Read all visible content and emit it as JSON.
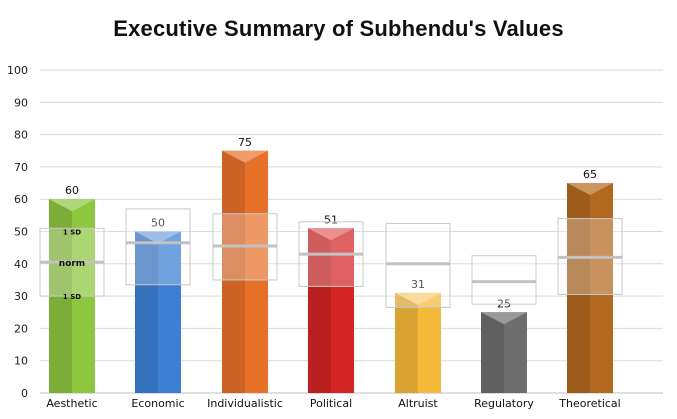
{
  "chart_data": {
    "type": "bar",
    "title": "Executive Summary of Subhendu's Values",
    "xlabel": "",
    "ylabel": "",
    "ylim": [
      0,
      100
    ],
    "yticks": [
      0,
      10,
      20,
      30,
      40,
      50,
      60,
      70,
      80,
      90,
      100
    ],
    "grid": true,
    "categories": [
      "Aesthetic",
      "Economic",
      "Individualistic",
      "Political",
      "Altruist",
      "Regulatory",
      "Theoretical"
    ],
    "values": [
      60,
      50,
      75,
      51,
      31,
      25,
      65
    ],
    "colors": [
      "#8dc63f",
      "#3b7fd4",
      "#e8712a",
      "#d42424",
      "#f5b93a",
      "#6d6d6d",
      "#b2691f"
    ],
    "norms": [
      {
        "norm": 40.5,
        "sd_low": 30,
        "sd_high": 51
      },
      {
        "norm": 46.5,
        "sd_low": 33.5,
        "sd_high": 57
      },
      {
        "norm": 45.5,
        "sd_low": 35,
        "sd_high": 55.5
      },
      {
        "norm": 43,
        "sd_low": 33,
        "sd_high": 53
      },
      {
        "norm": 40,
        "sd_low": 26.5,
        "sd_high": 52.5
      },
      {
        "norm": 34.5,
        "sd_low": 27.5,
        "sd_high": 42.5
      },
      {
        "norm": 42,
        "sd_low": 30.5,
        "sd_high": 54
      }
    ],
    "norm_annotations": {
      "upper": "1 SD",
      "middle": "norm",
      "lower": "1 SD"
    }
  }
}
